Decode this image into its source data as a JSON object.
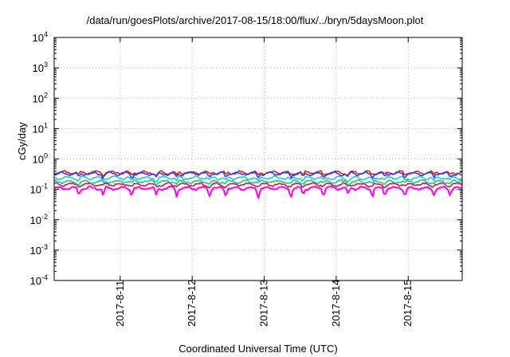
{
  "chart_data": {
    "type": "line",
    "title": "/data/run/goesPlots/archive/2017-08-15/18:00/flux/../bryn/5daysMoon.plot",
    "xlabel": "Coordinated Universal Time (UTC)",
    "ylabel": "cGy/day",
    "y_scale": "log",
    "ylim": [
      0.0001,
      10000
    ],
    "y_ticks": [
      {
        "base": "10",
        "exp": "-4"
      },
      {
        "base": "10",
        "exp": "-3"
      },
      {
        "base": "10",
        "exp": "-2"
      },
      {
        "base": "10",
        "exp": "-1"
      },
      {
        "base": "10",
        "exp": "0"
      },
      {
        "base": "10",
        "exp": "1"
      },
      {
        "base": "10",
        "exp": "2"
      },
      {
        "base": "10",
        "exp": "3"
      },
      {
        "base": "10",
        "exp": "4"
      }
    ],
    "xlim": [
      "2017-08-10 02:00",
      "2017-08-15 18:00"
    ],
    "x_ticks": [
      "2017-8-11",
      "2017-8-12",
      "2017-8-13",
      "2017-8-14",
      "2017-8-15"
    ],
    "grid": true,
    "series": [
      {
        "color": "#ff00ff",
        "level": 0.11,
        "dip_depth": 0.45
      },
      {
        "color": "#c8202a",
        "level": 0.145,
        "dip_depth": 0.12
      },
      {
        "color": "#20c090",
        "level": 0.18,
        "dip_depth": 0.15
      },
      {
        "color": "#20c8e8",
        "level": 0.24,
        "dip_depth": 0.25
      },
      {
        "color": "#e02020",
        "level": 0.36,
        "dip_depth": 0.2
      },
      {
        "color": "#3040e0",
        "level": 0.33,
        "dip_depth": 0.25
      }
    ]
  }
}
